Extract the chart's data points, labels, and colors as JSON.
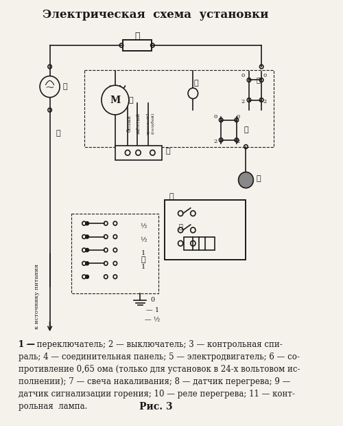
{
  "title": "Электрическая  схема  установки",
  "caption_fig": "Рис. 3",
  "caption_text": "1 — переключатель; 2 — выключатель; 3 — контрольная спи-\nраль; 4 — соединительная панель; 5 — электродвигатель; 6 — со-\nпротивление 0,65 ома (только для установок в 24-х вольтовом ис-\nполнении); 7 — свеча накаливания; 8 — датчик перегрева; 9 —\nдатчик сигнализации горения; 10 — реле перегрева; 11 — конт-\nрольная  лампа.",
  "bg_color": "#f5f2eb",
  "line_color": "#1a1a1a",
  "title_fontsize": 12,
  "caption_fontsize": 8.5,
  "fig_label_fontsize": 10
}
